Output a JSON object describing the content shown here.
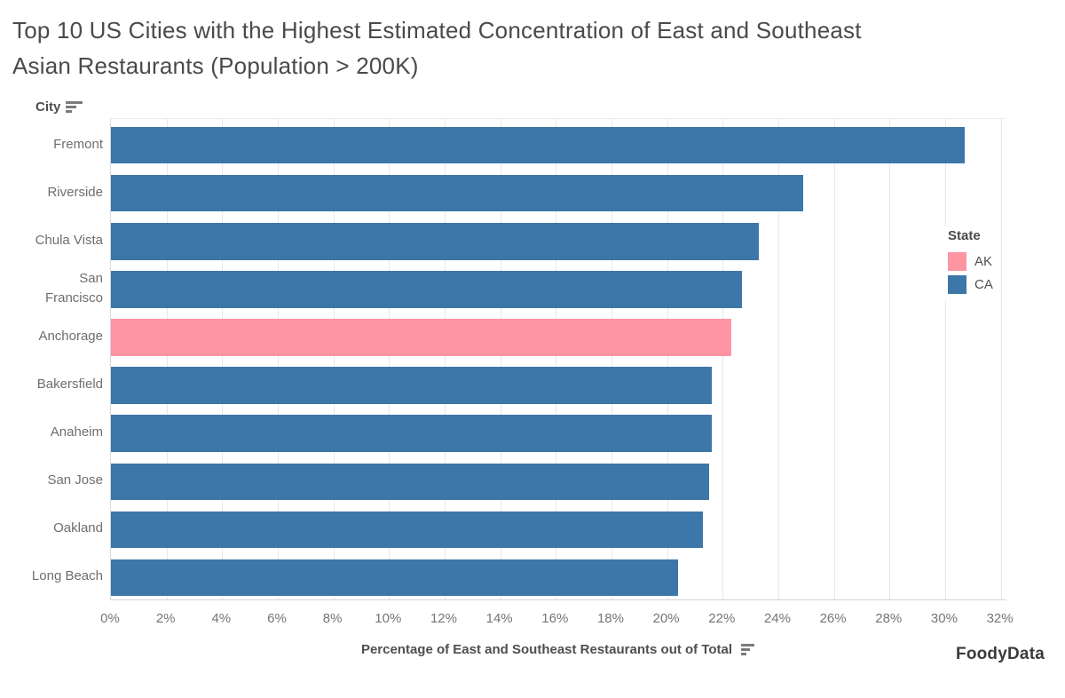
{
  "title": {
    "line1": "Top 10 US Cities with the Highest Estimated Concentration of East and Southeast",
    "line2": "Asian Restaurants (Population > 200K)"
  },
  "y_axis": {
    "header": "City"
  },
  "x_axis": {
    "title": "Percentage of East and Southeast Restaurants out of Total",
    "tick_labels": [
      "0%",
      "2%",
      "4%",
      "6%",
      "8%",
      "10%",
      "12%",
      "14%",
      "16%",
      "18%",
      "20%",
      "22%",
      "24%",
      "26%",
      "28%",
      "30%",
      "32%"
    ]
  },
  "legend": {
    "title": "State",
    "items": [
      {
        "label": "AK",
        "color": "#fd95a3"
      },
      {
        "label": "CA",
        "color": "#3d76a8"
      }
    ]
  },
  "branding": "FoodyData",
  "chart_data": {
    "type": "bar",
    "orientation": "horizontal",
    "title": "Top 10 US Cities with the Highest Estimated Concentration of East and Southeast Asian Restaurants (Population > 200K)",
    "xlabel": "Percentage of East and Southeast Restaurants out of Total",
    "ylabel": "City",
    "xlim": [
      0,
      32
    ],
    "x_tick_step": 2,
    "x_tick_unit": "%",
    "grid": true,
    "legend_position": "right",
    "color_by": "State",
    "colors": {
      "AK": "#fd95a3",
      "CA": "#3d76a8"
    },
    "points": [
      {
        "city": "Fremont",
        "state": "CA",
        "value": 30.7
      },
      {
        "city": "Riverside",
        "state": "CA",
        "value": 24.9
      },
      {
        "city": "Chula Vista",
        "state": "CA",
        "value": 23.3
      },
      {
        "city": "San Francisco",
        "state": "CA",
        "value": 22.7
      },
      {
        "city": "Anchorage",
        "state": "AK",
        "value": 22.3
      },
      {
        "city": "Bakersfield",
        "state": "CA",
        "value": 21.6
      },
      {
        "city": "Anaheim",
        "state": "CA",
        "value": 21.6
      },
      {
        "city": "San Jose",
        "state": "CA",
        "value": 21.5
      },
      {
        "city": "Oakland",
        "state": "CA",
        "value": 21.3
      },
      {
        "city": "Long Beach",
        "state": "CA",
        "value": 20.4
      }
    ]
  }
}
